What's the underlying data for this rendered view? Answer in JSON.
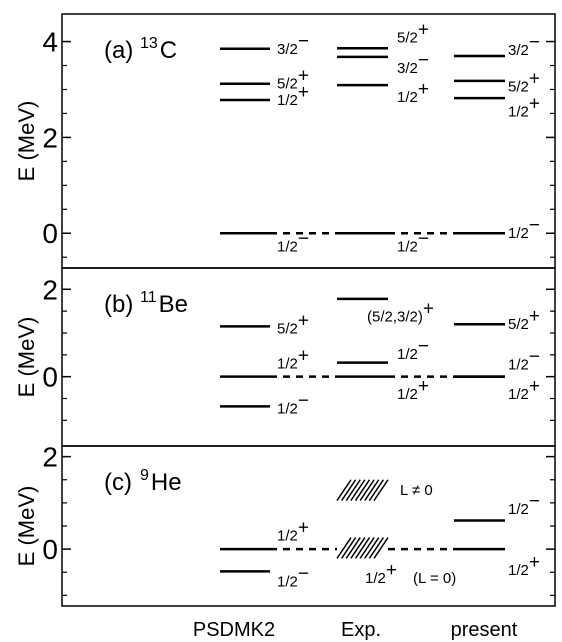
{
  "chart_data": [
    {
      "type": "level-scheme",
      "panel_label": "(a)",
      "nucleus": {
        "mass": "13",
        "symbol": "C"
      },
      "ylabel": "E (MeV)",
      "ylim": [
        -0.6,
        4.45
      ],
      "yticks": [
        0,
        2,
        4
      ],
      "columns": [
        "PSDMK2",
        "Exp.",
        "present"
      ],
      "levels": [
        {
          "column": "PSDMK2",
          "energy": 3.85,
          "j": "3/2",
          "parity": "−",
          "label_dy": 0
        },
        {
          "column": "PSDMK2",
          "energy": 3.12,
          "j": "5/2",
          "parity": "+",
          "label_dy": 0
        },
        {
          "column": "PSDMK2",
          "energy": 2.78,
          "j": "1/2",
          "parity": "+",
          "label_dy": 0
        },
        {
          "column": "PSDMK2",
          "energy": 0.0,
          "j": "1/2",
          "parity": "−",
          "label_dy": -0.28
        },
        {
          "column": "Exp.",
          "energy": 3.86,
          "j": "5/2",
          "parity": "+",
          "label_dy": 0.22
        },
        {
          "column": "Exp.",
          "energy": 3.68,
          "j": "3/2",
          "parity": "−",
          "label_dy": -0.23
        },
        {
          "column": "Exp.",
          "energy": 3.09,
          "j": "1/2",
          "parity": "+",
          "label_dy": -0.25
        },
        {
          "column": "Exp.",
          "energy": 0.0,
          "j": "1/2",
          "parity": "−",
          "label_dy": -0.28
        },
        {
          "column": "present",
          "energy": 3.7,
          "j": "3/2",
          "parity": "−",
          "label_dy": 0.12
        },
        {
          "column": "present",
          "energy": 3.18,
          "j": "5/2",
          "parity": "+",
          "label_dy": -0.12
        },
        {
          "column": "present",
          "energy": 2.82,
          "j": "1/2",
          "parity": "+",
          "label_dy": -0.28
        },
        {
          "column": "present",
          "energy": 0.0,
          "j": "1/2",
          "parity": "−",
          "label_dy": 0
        }
      ],
      "dashed_links": [
        [
          "PSDMK2",
          "Exp.",
          0.0
        ],
        [
          "Exp.",
          "present",
          0.0
        ]
      ]
    },
    {
      "type": "level-scheme",
      "panel_label": "(b)",
      "nucleus": {
        "mass": "11",
        "symbol": "Be"
      },
      "ylabel": "E (MeV)",
      "ylim": [
        -1.45,
        2.35
      ],
      "yticks": [
        0,
        2
      ],
      "columns": [
        "PSDMK2",
        "Exp.",
        "present"
      ],
      "levels": [
        {
          "column": "PSDMK2",
          "energy": 1.15,
          "j": "5/2",
          "parity": "+",
          "label_dy": -0.05
        },
        {
          "column": "PSDMK2",
          "energy": 0.0,
          "j": "1/2",
          "parity": "+",
          "label_dy": 0.3
        },
        {
          "column": "PSDMK2",
          "energy": -0.68,
          "j": "1/2",
          "parity": "−",
          "label_dy": -0.05
        },
        {
          "column": "Exp.",
          "energy": 1.78,
          "j": "(5/2,3/2)",
          "parity": "+",
          "label_dy": -0.4
        },
        {
          "column": "Exp.",
          "energy": 0.32,
          "j": "1/2",
          "parity": "−",
          "label_dy": 0.2
        },
        {
          "column": "Exp.",
          "energy": 0.0,
          "j": "1/2",
          "parity": "+",
          "label_dy": -0.4
        },
        {
          "column": "present",
          "energy": 1.2,
          "j": "5/2",
          "parity": "+",
          "label_dy": 0
        },
        {
          "column": "present",
          "energy": 0.0,
          "j": "1/2",
          "parity": "−",
          "label_dy": 0.28
        },
        {
          "column": "present",
          "energy": 0.0,
          "j": "1/2",
          "parity": "+",
          "label_dy": -0.4
        }
      ],
      "dashed_links": [
        [
          "PSDMK2",
          "Exp.",
          0.0
        ],
        [
          "Exp.",
          "present",
          0.0
        ]
      ]
    },
    {
      "type": "level-scheme",
      "panel_label": "(c)",
      "nucleus": {
        "mass": "9",
        "symbol": "He"
      },
      "ylabel": "E (MeV)",
      "ylim": [
        -1.1,
        2.1
      ],
      "yticks": [
        0,
        2
      ],
      "columns": [
        "PSDMK2",
        "Exp.",
        "present"
      ],
      "levels": [
        {
          "column": "PSDMK2",
          "energy": 0.0,
          "j": "1/2",
          "parity": "+",
          "label_dy": 0.3
        },
        {
          "column": "PSDMK2",
          "energy": -0.48,
          "j": "1/2",
          "parity": "−",
          "label_dy": -0.22
        },
        {
          "column": "present",
          "energy": 0.62,
          "j": "1/2",
          "parity": "−",
          "label_dy": 0.25
        },
        {
          "column": "present",
          "energy": 0.0,
          "j": "1/2",
          "parity": "+",
          "label_dy": -0.45
        }
      ],
      "resonances": [
        {
          "column": "Exp.",
          "energy_low": 1.05,
          "energy_high": 1.5,
          "label": "L ≠ 0"
        },
        {
          "column": "Exp.",
          "energy_low": -0.2,
          "energy_high": 0.25,
          "j": "1/2",
          "parity": "+",
          "label": "(L = 0)"
        }
      ],
      "dashed_links": [
        [
          "PSDMK2",
          "Exp.",
          0.0
        ],
        [
          "Exp.",
          "present",
          0.0
        ]
      ]
    }
  ]
}
